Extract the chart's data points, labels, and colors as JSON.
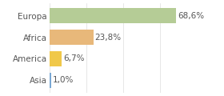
{
  "categories": [
    "Europa",
    "Africa",
    "America",
    "Asia"
  ],
  "values": [
    68.6,
    23.8,
    6.7,
    1.0
  ],
  "labels": [
    "68,6%",
    "23,8%",
    "6,7%",
    "1,0%"
  ],
  "bar_colors": [
    "#b5cc96",
    "#e8b87a",
    "#f0c84a",
    "#7aa8d4"
  ],
  "background_color": "#ffffff",
  "xlim": [
    0,
    80
  ],
  "bar_height": 0.72,
  "label_fontsize": 7.5,
  "category_fontsize": 7.5,
  "grid_color": "#dddddd",
  "text_color": "#555555"
}
